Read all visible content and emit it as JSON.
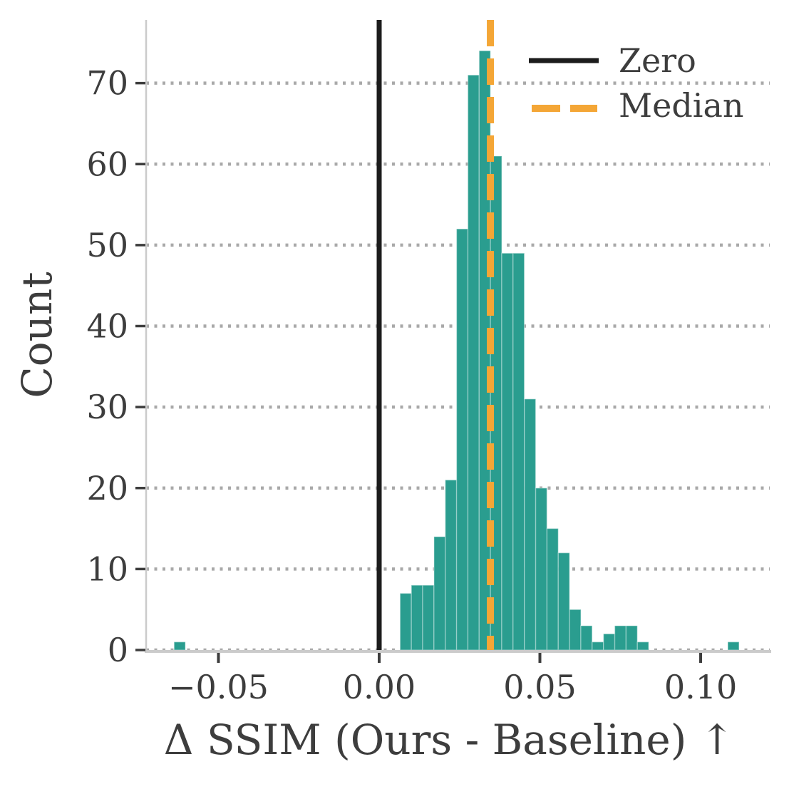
{
  "chart_data": {
    "type": "bar",
    "subtype": "histogram",
    "title": "",
    "xlabel": "Δ SSIM (Ours - Baseline)  ↑",
    "ylabel": "Count",
    "histogram": {
      "bin_start": -0.0638,
      "bin_width": 0.003515,
      "counts": [
        1,
        0,
        0,
        0,
        0,
        0,
        0,
        0,
        0,
        0,
        0,
        0,
        0,
        0,
        0,
        0,
        0,
        0,
        0,
        0,
        7,
        8,
        8,
        14,
        21,
        52,
        71,
        74,
        61,
        49,
        49,
        31,
        20,
        15,
        12,
        5,
        3,
        1,
        2,
        3,
        3,
        1,
        0,
        0,
        0,
        0,
        0,
        0,
        0,
        1
      ]
    },
    "xlim": [
      -0.0725,
      0.1215
    ],
    "ylim": [
      0,
      77.8
    ],
    "x_ticks": [
      {
        "value": -0.05,
        "label": "−0.05"
      },
      {
        "value": 0.0,
        "label": "0.00"
      },
      {
        "value": 0.05,
        "label": "0.05"
      },
      {
        "value": 0.1,
        "label": "0.10"
      }
    ],
    "y_ticks": [
      {
        "value": 0,
        "label": "0"
      },
      {
        "value": 10,
        "label": "10"
      },
      {
        "value": 20,
        "label": "20"
      },
      {
        "value": 30,
        "label": "30"
      },
      {
        "value": 40,
        "label": "40"
      },
      {
        "value": 50,
        "label": "50"
      },
      {
        "value": 60,
        "label": "60"
      },
      {
        "value": 70,
        "label": "70"
      }
    ],
    "grid": {
      "axis": "y",
      "style": "dotted",
      "color": "#a9a9a9"
    },
    "bar_color": "#2a9d8f",
    "bar_edge_color": "rgba(255,255,255,0.35)",
    "reference_lines": [
      {
        "name": "zero",
        "value": 0.0,
        "color": "#1c1c1c",
        "style": "solid",
        "width": 7
      },
      {
        "name": "median",
        "value": 0.0346,
        "color": "#f4a636",
        "style": "dashed",
        "width": 10
      }
    ],
    "legend": {
      "position": "upper right",
      "entries": [
        {
          "label": "Zero",
          "color": "#1c1c1c",
          "style": "solid"
        },
        {
          "label": "Median",
          "color": "#f4a636",
          "style": "dashed"
        }
      ]
    },
    "text_color": "#3d3d3d",
    "spine_color": "#cbcbcb",
    "background": "#ffffff"
  }
}
